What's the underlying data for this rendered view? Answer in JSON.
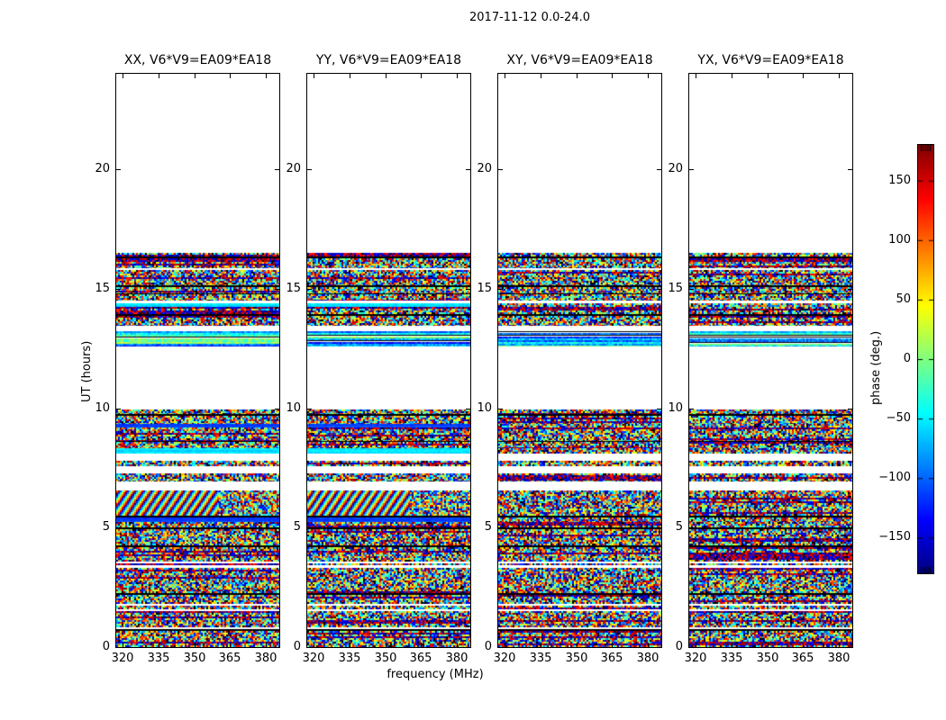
{
  "figure": {
    "title": "2017-11-12 0.0-24.0"
  },
  "chart_data": {
    "type": "heatmap",
    "title": "2017-11-12 0.0-24.0",
    "xlabel": "frequency (MHz)",
    "ylabel": "UT (hours)",
    "x_ticks": [
      320,
      335,
      350,
      365,
      380
    ],
    "x_tick_labels": [
      "320",
      "335",
      "350",
      "365",
      "380"
    ],
    "x_range": [
      317.5,
      385.5
    ],
    "y_ticks": [
      0,
      5,
      10,
      15,
      20
    ],
    "y_tick_labels": [
      "0",
      "5",
      "10",
      "15",
      "20"
    ],
    "y_range": [
      0,
      24
    ],
    "grid": false,
    "panels": [
      {
        "label": "XX, V6*V9=EA09*EA18",
        "seed": 1101,
        "coherent": true
      },
      {
        "label": "YY, V6*V9=EA09*EA18",
        "seed": 2202,
        "coherent": true
      },
      {
        "label": "XY, V6*V9=EA09*EA18",
        "seed": 3303,
        "coherent": false
      },
      {
        "label": "YX, V6*V9=EA09*EA18",
        "seed": 4404,
        "coherent": false
      }
    ],
    "colorbar": {
      "label": "phase (deg.)",
      "colormap": "jet",
      "range": [
        -180,
        180
      ],
      "tick_values": [
        150,
        100,
        50,
        0,
        -50,
        -100,
        -150
      ],
      "tick_labels": [
        "150",
        "100",
        "50",
        "0",
        "−50",
        "−100",
        "−150"
      ]
    },
    "bands": [
      {
        "kind": "noise",
        "u0": 0.0,
        "u1": 0.68
      },
      {
        "kind": "black",
        "u0": 0.68,
        "u1": 0.75
      },
      {
        "kind": "white",
        "u0": 0.75,
        "u1": 0.83
      },
      {
        "kind": "noise",
        "u0": 0.83,
        "u1": 1.5
      },
      {
        "kind": "white",
        "u0": 1.5,
        "u1": 1.6
      },
      {
        "kind": "noise",
        "u0": 1.6,
        "u1": 1.72
      },
      {
        "kind": "white",
        "u0": 1.72,
        "u1": 1.79
      },
      {
        "kind": "noise",
        "u0": 1.79,
        "u1": 2.18
      },
      {
        "kind": "black",
        "u0": 2.18,
        "u1": 2.25
      },
      {
        "kind": "noise",
        "u0": 2.25,
        "u1": 3.3
      },
      {
        "kind": "white",
        "u0": 3.3,
        "u1": 3.42
      },
      {
        "kind": "noise",
        "u0": 3.42,
        "u1": 3.5
      },
      {
        "kind": "white",
        "u0": 3.5,
        "u1": 3.58
      },
      {
        "kind": "noise",
        "u0": 3.58,
        "u1": 4.18
      },
      {
        "kind": "black",
        "u0": 4.18,
        "u1": 4.25
      },
      {
        "kind": "noise",
        "u0": 4.25,
        "u1": 4.95
      },
      {
        "kind": "black",
        "u0": 4.95,
        "u1": 5.02
      },
      {
        "kind": "noise",
        "u0": 5.02,
        "u1": 5.24
      },
      {
        "kind": "smooth",
        "u0": 5.24,
        "u1": 5.43,
        "coherent_only": true
      },
      {
        "kind": "black",
        "u0": 5.43,
        "u1": 5.5
      },
      {
        "kind": "fringe",
        "u0": 5.5,
        "u1": 6.56,
        "coherent_only": true
      },
      {
        "kind": "white",
        "u0": 6.56,
        "u1": 6.92
      },
      {
        "kind": "noise",
        "u0": 6.92,
        "u1": 7.27
      },
      {
        "kind": "white",
        "u0": 7.27,
        "u1": 7.57
      },
      {
        "kind": "noise",
        "u0": 7.57,
        "u1": 7.8
      },
      {
        "kind": "white",
        "u0": 7.8,
        "u1": 8.1
      },
      {
        "kind": "cyan",
        "u0": 8.1,
        "u1": 8.33,
        "coherent_only": true
      },
      {
        "kind": "noise",
        "u0": 8.33,
        "u1": 8.58
      },
      {
        "kind": "black",
        "u0": 8.58,
        "u1": 8.64
      },
      {
        "kind": "noise",
        "u0": 8.64,
        "u1": 9.2
      },
      {
        "kind": "smooth",
        "u0": 9.2,
        "u1": 9.36,
        "coherent_only": true
      },
      {
        "kind": "noise",
        "u0": 9.36,
        "u1": 9.68
      },
      {
        "kind": "black",
        "u0": 9.68,
        "u1": 9.74
      },
      {
        "kind": "noise",
        "u0": 9.74,
        "u1": 9.95
      },
      {
        "kind": "semi",
        "u0": 12.58,
        "u1": 13.22
      },
      {
        "kind": "white",
        "u0": 13.22,
        "u1": 13.45
      },
      {
        "kind": "noise",
        "u0": 13.45,
        "u1": 13.88
      },
      {
        "kind": "black",
        "u0": 13.88,
        "u1": 13.94
      },
      {
        "kind": "noise",
        "u0": 13.94,
        "u1": 14.24
      },
      {
        "kind": "cyan",
        "u0": 14.24,
        "u1": 14.39,
        "coherent_only": true
      },
      {
        "kind": "white",
        "u0": 14.39,
        "u1": 14.5
      },
      {
        "kind": "noise",
        "u0": 14.5,
        "u1": 14.76
      },
      {
        "kind": "black",
        "u0": 14.76,
        "u1": 14.82
      },
      {
        "kind": "noise",
        "u0": 14.82,
        "u1": 15.08
      },
      {
        "kind": "black",
        "u0": 15.08,
        "u1": 15.15
      },
      {
        "kind": "noise",
        "u0": 15.15,
        "u1": 15.78
      },
      {
        "kind": "white",
        "u0": 15.78,
        "u1": 15.86
      },
      {
        "kind": "noise",
        "u0": 15.86,
        "u1": 16.28
      },
      {
        "kind": "black",
        "u0": 16.28,
        "u1": 16.35
      },
      {
        "kind": "noise",
        "u0": 16.35,
        "u1": 16.5
      }
    ]
  },
  "colors": {
    "background": "#ffffff",
    "frame": "#000000",
    "text": "#000000"
  }
}
